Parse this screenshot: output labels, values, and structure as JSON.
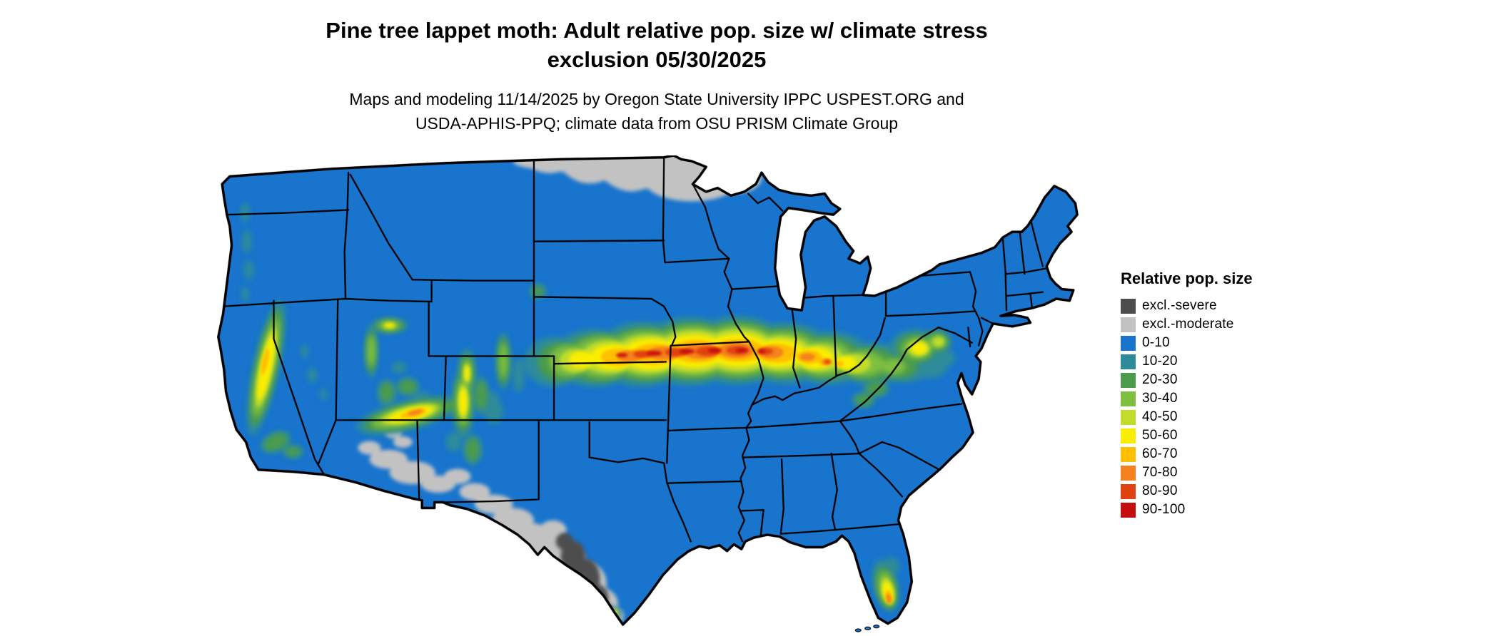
{
  "header": {
    "title_line1": "Pine tree lappet moth: Adult relative pop. size w/ climate stress",
    "title_line2": "exclusion 05/30/2025",
    "subtitle_line1": "Maps and modeling 11/14/2025 by Oregon State University IPPC USPEST.ORG and",
    "subtitle_line2": "USDA-APHIS-PPQ; climate data from OSU PRISM Climate Group"
  },
  "map": {
    "region_label": "Contiguous United States"
  },
  "legend": {
    "title": "Relative pop. size",
    "items": [
      {
        "label": "excl.-severe",
        "key": "excl-severe"
      },
      {
        "label": "excl.-moderate",
        "key": "excl-moderate"
      },
      {
        "label": "0-10",
        "key": "c0-10"
      },
      {
        "label": "10-20",
        "key": "c10-20"
      },
      {
        "label": "20-30",
        "key": "c20-30"
      },
      {
        "label": "30-40",
        "key": "c30-40"
      },
      {
        "label": "40-50",
        "key": "c40-50"
      },
      {
        "label": "50-60",
        "key": "c50-60"
      },
      {
        "label": "60-70",
        "key": "c60-70"
      },
      {
        "label": "70-80",
        "key": "c70-80"
      },
      {
        "label": "80-90",
        "key": "c80-90"
      },
      {
        "label": "90-100",
        "key": "c90-100"
      }
    ]
  },
  "palette": {
    "excl-severe": "#4D4D4D",
    "excl-moderate": "#C2C2C2",
    "c0-10": "#1874CD",
    "c10-20": "#2E8B9A",
    "c20-30": "#4C9B4C",
    "c30-40": "#7FBF3F",
    "c40-50": "#C2DC2B",
    "c50-60": "#FBED00",
    "c60-70": "#FFBF00",
    "c70-80": "#F5821F",
    "c80-90": "#E04311",
    "c90-100": "#C40D0D"
  }
}
